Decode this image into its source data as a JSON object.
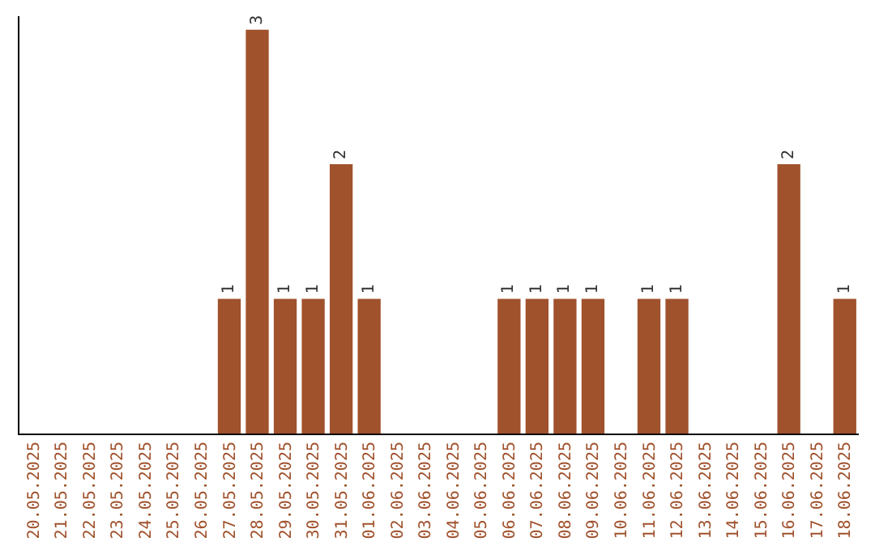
{
  "chart_data": {
    "type": "bar",
    "categories": [
      "20.05.2025",
      "21.05.2025",
      "22.05.2025",
      "23.05.2025",
      "24.05.2025",
      "25.05.2025",
      "26.05.2025",
      "27.05.2025",
      "28.05.2025",
      "29.05.2025",
      "30.05.2025",
      "31.05.2025",
      "01.06.2025",
      "02.06.2025",
      "03.06.2025",
      "04.06.2025",
      "05.06.2025",
      "06.06.2025",
      "07.06.2025",
      "08.06.2025",
      "09.06.2025",
      "10.06.2025",
      "11.06.2025",
      "12.06.2025",
      "13.06.2025",
      "14.06.2025",
      "15.06.2025",
      "16.06.2025",
      "17.06.2025",
      "18.06.2025"
    ],
    "values": [
      0,
      0,
      0,
      0,
      0,
      0,
      0,
      1,
      3,
      1,
      1,
      2,
      1,
      0,
      0,
      0,
      0,
      1,
      1,
      1,
      1,
      0,
      1,
      1,
      0,
      0,
      0,
      2,
      0,
      1
    ],
    "value_labels": [
      null,
      null,
      null,
      null,
      null,
      null,
      null,
      "1",
      "3",
      "1",
      "1",
      "2",
      "1",
      null,
      null,
      null,
      null,
      "1",
      "1",
      "1",
      "1",
      null,
      "1",
      "1",
      null,
      null,
      null,
      "2",
      null,
      "1"
    ],
    "color": "#a0522d",
    "ylim": [
      0,
      3.1
    ],
    "tick_labels": "x",
    "grid": false,
    "legend": false
  }
}
